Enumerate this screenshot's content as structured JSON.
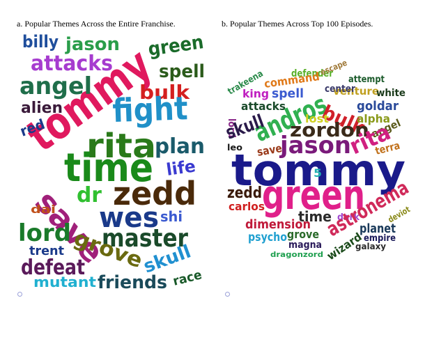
{
  "captions": {
    "a": "a. Popular Themes Across the Entire Franchise.",
    "b": "b. Popular Themes Across Top 100 Episodes."
  },
  "clouds": {
    "a": [
      {
        "text": "billy",
        "color": "#1f4e9c"
      },
      {
        "text": "jason",
        "color": "#2a9d4a"
      },
      {
        "text": "green",
        "color": "#1a6b2a"
      },
      {
        "text": "attacks",
        "color": "#a63ccf"
      },
      {
        "text": "tommy",
        "color": "#e0195e"
      },
      {
        "text": "spell",
        "color": "#2b5b1b"
      },
      {
        "text": "angel",
        "color": "#1f6e4a"
      },
      {
        "text": "bulk",
        "color": "#d42020"
      },
      {
        "text": "alien",
        "color": "#3a1a3a"
      },
      {
        "text": "fight",
        "color": "#2090c8"
      },
      {
        "text": "red",
        "color": "#1a3a8a"
      },
      {
        "text": "rita",
        "color": "#2a7a1a"
      },
      {
        "text": "plan",
        "color": "#1a5a6a"
      },
      {
        "text": "time",
        "color": "#1a8a1a"
      },
      {
        "text": "life",
        "color": "#3a3ad0"
      },
      {
        "text": "save",
        "color": "#a0207a"
      },
      {
        "text": "dr",
        "color": "#30c030"
      },
      {
        "text": "zedd",
        "color": "#4a2a0a"
      },
      {
        "text": "dai",
        "color": "#c0501a"
      },
      {
        "text": "shi",
        "color": "#3a5ad0"
      },
      {
        "text": "wes",
        "color": "#1a3a8a"
      },
      {
        "text": "lord",
        "color": "#1a7a2a"
      },
      {
        "text": "master",
        "color": "#1a4a2a"
      },
      {
        "text": "trent",
        "color": "#1a3a8a"
      },
      {
        "text": "grove",
        "color": "#6a6a10"
      },
      {
        "text": "skull",
        "color": "#2090d0"
      },
      {
        "text": "defeat",
        "color": "#5a1a5a"
      },
      {
        "text": "race",
        "color": "#1a5a2a"
      },
      {
        "text": "mutant",
        "color": "#20b0d0"
      },
      {
        "text": "friends",
        "color": "#1a4a5a"
      }
    ],
    "b": [
      {
        "text": "trakeena",
        "color": "#2a8a4a"
      },
      {
        "text": "defender",
        "color": "#5ab02a"
      },
      {
        "text": "escape",
        "color": "#a07a3a"
      },
      {
        "text": "attempt",
        "color": "#1a5a2a"
      },
      {
        "text": "command",
        "color": "#e07a1a"
      },
      {
        "text": "venture",
        "color": "#c0a020"
      },
      {
        "text": "king",
        "color": "#c020c0"
      },
      {
        "text": "spell",
        "color": "#3a5ad0"
      },
      {
        "text": "center",
        "color": "#3a3a6a"
      },
      {
        "text": "white",
        "color": "#1a3a1a"
      },
      {
        "text": "lord",
        "color": "#8a2a8a"
      },
      {
        "text": "attacks",
        "color": "#1a4a2a"
      },
      {
        "text": "andros",
        "color": "#30b050"
      },
      {
        "text": "bulk",
        "color": "#d0202a"
      },
      {
        "text": "goldar",
        "color": "#2a4a9a"
      },
      {
        "text": "skull",
        "color": "#2a1a4a"
      },
      {
        "text": "lost",
        "color": "#d0d020"
      },
      {
        "text": "alpha",
        "color": "#8a9a1a"
      },
      {
        "text": "zordon",
        "color": "#3a2a1a"
      },
      {
        "text": "angel",
        "color": "#5a5a1a"
      },
      {
        "text": "leo",
        "color": "#1a1a1a"
      },
      {
        "text": "save",
        "color": "#9a3a1a"
      },
      {
        "text": "jason",
        "color": "#7a1a7a"
      },
      {
        "text": "rita",
        "color": "#d02080"
      },
      {
        "text": "terra",
        "color": "#c0701a"
      },
      {
        "text": "tommy",
        "color": "#1a1a8a"
      },
      {
        "text": "zedd",
        "color": "#3a1a0a"
      },
      {
        "text": "green",
        "color": "#e0208a"
      },
      {
        "text": "5",
        "color": "#20b0b0"
      },
      {
        "text": "carlos",
        "color": "#d02020"
      },
      {
        "text": "time",
        "color": "#2a2a2a"
      },
      {
        "text": "dark",
        "color": "#a04ad0"
      },
      {
        "text": "astronema",
        "color": "#d02a5a"
      },
      {
        "text": "deviot",
        "color": "#8a8a1a"
      },
      {
        "text": "dimension",
        "color": "#c01a3a"
      },
      {
        "text": "planet",
        "color": "#1a3a5a"
      },
      {
        "text": "psycho",
        "color": "#20a0d0"
      },
      {
        "text": "grove",
        "color": "#2a6a2a"
      },
      {
        "text": "wizard",
        "color": "#1a4a1a"
      },
      {
        "text": "empire",
        "color": "#1a1a5a"
      },
      {
        "text": "magna",
        "color": "#2a1a5a"
      },
      {
        "text": "galaxy",
        "color": "#2a2a2a"
      },
      {
        "text": "dragonzord",
        "color": "#20a050"
      }
    ]
  }
}
